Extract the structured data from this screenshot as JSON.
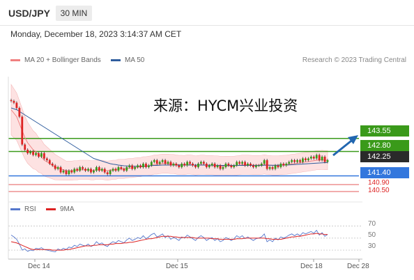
{
  "header": {
    "symbol": "USD/JPY",
    "timeframe": "30 MIN",
    "timestamp": "Monday, December 18, 2023 3:14:37 AM CET"
  },
  "legend_top": [
    {
      "label": "MA 20 + Bollinger Bands",
      "color": "#f08080"
    },
    {
      "label": "MA 50",
      "color": "#2f5d9e"
    }
  ],
  "credit": "Research © 2023 Trading Central",
  "watermark": "来源：HYCM兴业投资",
  "legend_bottom": [
    {
      "label": "RSI",
      "color": "#5577cc"
    },
    {
      "label": "9MA",
      "color": "#dd2222"
    }
  ],
  "price_tags": [
    {
      "value": "143.55",
      "bg": "#3a9a1a",
      "fg": "#ffffff"
    },
    {
      "value": "142.80",
      "bg": "#3a9a1a",
      "fg": "#ffffff"
    },
    {
      "value": "142.25",
      "bg": "#2a2a2a",
      "fg": "#ffffff"
    },
    {
      "value": "141.40",
      "bg": "#3377dd",
      "fg": "#ffffff"
    }
  ],
  "price_labels": [
    {
      "value": "140.90",
      "color": "#dd2222"
    },
    {
      "value": "140.50",
      "color": "#dd2222"
    }
  ],
  "rsi_ticks": [
    "70",
    "50",
    "30"
  ],
  "x_ticks": [
    "Dec 14",
    "Dec 15",
    "Dec 18",
    "Dec 28"
  ],
  "chart_data": [
    {
      "type": "line",
      "title": "",
      "levels": [
        {
          "value": 143.55,
          "kind": "resistance",
          "color": "#3a9a1a"
        },
        {
          "value": 142.8,
          "kind": "resistance",
          "color": "#3a9a1a"
        },
        {
          "value": 142.25,
          "kind": "last price",
          "color": "#2a2a2a"
        },
        {
          "value": 141.4,
          "kind": "support",
          "color": "#3377dd"
        },
        {
          "value": 140.9,
          "kind": "support",
          "color": "#dd2222"
        },
        {
          "value": 140.5,
          "kind": "support",
          "color": "#dd2222"
        }
      ],
      "close": [
        145.7,
        145.6,
        145.3,
        144.8,
        143.2,
        142.9,
        142.7,
        142.8,
        142.6,
        142.7,
        142.5,
        142.7,
        142.4,
        142.3,
        142.1,
        142.0,
        141.8,
        141.9,
        141.6,
        141.7,
        141.5,
        141.7,
        141.6,
        141.8,
        141.7,
        141.9,
        141.8,
        141.7,
        141.8,
        141.6,
        141.7,
        141.9,
        141.7,
        141.8,
        141.6,
        141.5,
        141.7,
        141.8,
        141.7,
        141.9,
        141.8,
        141.7,
        141.9,
        142.0,
        141.8,
        141.9,
        142.0,
        141.9,
        142.1,
        141.9,
        142.0,
        142.2,
        142.3,
        142.1,
        142.2,
        142.3,
        142.1,
        142.2,
        142.0,
        142.1,
        142.0,
        141.9,
        142.1,
        142.0,
        142.2,
        142.1,
        142.0,
        141.9,
        142.1,
        142.2,
        142.1,
        141.9,
        142.0,
        142.1,
        141.9,
        142.0,
        141.8,
        141.9,
        142.1,
        142.0,
        141.9,
        142.0,
        142.2,
        142.1,
        142.2,
        142.0,
        142.1,
        142.0,
        141.9,
        142.0,
        142.0,
        142.1,
        142.3,
        141.8,
        141.9,
        141.8,
        142.0,
        141.9,
        142.1,
        142.0,
        142.1,
        142.2,
        142.3,
        142.2,
        142.3,
        142.2,
        142.4,
        142.3,
        142.4,
        142.5,
        142.4,
        142.6,
        142.3,
        142.5,
        142.2,
        142.3
      ],
      "ma20": [
        145.2,
        145.0,
        144.8,
        144.4,
        144.0,
        143.6,
        143.3,
        143.1,
        142.9,
        142.8,
        142.6,
        142.5,
        142.3,
        142.2,
        142.1,
        142.0,
        141.9,
        141.85,
        141.8,
        141.75,
        141.7,
        141.7,
        141.7,
        141.72,
        141.72,
        141.75,
        141.75,
        141.75,
        141.75,
        141.72,
        141.72,
        141.75,
        141.75,
        141.75,
        141.72,
        141.7,
        141.72,
        141.75,
        141.75,
        141.8,
        141.8,
        141.8,
        141.83,
        141.85,
        141.85,
        141.88,
        141.9,
        141.9,
        141.95,
        141.95,
        141.98,
        142.0,
        142.05,
        142.05,
        142.08,
        142.1,
        142.1,
        142.1,
        142.08,
        142.08,
        142.05,
        142.03,
        142.03,
        142.02,
        142.05,
        142.05,
        142.03,
        142.0,
        142.02,
        142.04,
        142.04,
        142.02,
        142.02,
        142.02,
        142.0,
        142.0,
        141.98,
        141.97,
        141.98,
        141.98,
        141.97,
        141.98,
        142.0,
        142.02,
        142.04,
        142.04,
        142.04,
        142.03,
        142.02,
        142.02,
        142.02,
        142.03,
        142.06,
        142.03,
        142.02,
        142.0,
        142.0,
        142.0,
        142.02,
        142.03,
        142.04,
        142.06,
        142.09,
        142.1,
        142.13,
        142.15,
        142.18,
        142.2,
        142.22,
        142.25,
        142.27,
        142.3,
        142.3,
        142.32,
        142.3,
        142.3
      ],
      "ma50": [
        145.3,
        145.25,
        145.2,
        145.1,
        145.0,
        144.9,
        144.8,
        144.7,
        144.6,
        144.5,
        144.4,
        144.3,
        144.2,
        144.1,
        144.0,
        143.9,
        143.8,
        143.7,
        143.6,
        143.5,
        143.4,
        143.3,
        143.2,
        143.1,
        143.0,
        142.9,
        142.8,
        142.7,
        142.6,
        142.5,
        142.4,
        142.35,
        142.3,
        142.25,
        142.2,
        142.15,
        142.1,
        142.07,
        142.05,
        142.02,
        142.0,
        141.98,
        141.97,
        141.96,
        141.95,
        141.95,
        141.95,
        141.95,
        141.96,
        141.97,
        141.98,
        141.99,
        142.0,
        142.0,
        142.01,
        142.02,
        142.02,
        142.02,
        142.02,
        142.02,
        142.02,
        142.02,
        142.02,
        142.02,
        142.02,
        142.02,
        142.02,
        142.02,
        142.02,
        142.02,
        142.02,
        142.01,
        142.01,
        142.01,
        142.0,
        142.0,
        142.0,
        142.0,
        142.0,
        142.0,
        142.0,
        142.0,
        142.0,
        142.0,
        142.0,
        142.0,
        142.0,
        142.0,
        142.0,
        142.0,
        142.0,
        142.0,
        142.01,
        142.01,
        142.01,
        142.01,
        142.01,
        142.01,
        142.02,
        142.02,
        142.02,
        142.03,
        142.04,
        142.05,
        142.06,
        142.07,
        142.08,
        142.09,
        142.1,
        142.11,
        142.12,
        142.13,
        142.14,
        142.15,
        142.16,
        142.17
      ],
      "rsi": [
        55,
        52,
        48,
        40,
        30,
        32,
        28,
        30,
        29,
        33,
        32,
        34,
        31,
        30,
        29,
        28,
        27,
        32,
        30,
        33,
        31,
        35,
        34,
        38,
        36,
        40,
        38,
        37,
        40,
        36,
        38,
        44,
        40,
        42,
        38,
        36,
        41,
        44,
        42,
        46,
        44,
        42,
        47,
        50,
        46,
        48,
        51,
        49,
        54,
        49,
        52,
        56,
        58,
        52,
        54,
        57,
        51,
        54,
        48,
        51,
        49,
        46,
        52,
        50,
        55,
        52,
        49,
        46,
        51,
        54,
        51,
        46,
        49,
        51,
        46,
        49,
        44,
        46,
        51,
        49,
        46,
        49,
        54,
        51,
        54,
        49,
        52,
        49,
        46,
        49,
        50,
        52,
        57,
        44,
        47,
        44,
        50,
        47,
        52,
        50,
        52,
        55,
        57,
        54,
        57,
        54,
        59,
        57,
        59,
        61,
        58,
        63,
        55,
        59,
        53,
        56
      ],
      "rsi_ma9": [
        44,
        43,
        42,
        40,
        38,
        36,
        34,
        32,
        31,
        31,
        31,
        31,
        31,
        31,
        31,
        30,
        30,
        30,
        30,
        30,
        31,
        31,
        32,
        33,
        34,
        35,
        36,
        37,
        37,
        37,
        38,
        38,
        39,
        39,
        39,
        39,
        40,
        40,
        41,
        41,
        41,
        42,
        42,
        43,
        43,
        44,
        45,
        46,
        47,
        48,
        49,
        49,
        50,
        51,
        52,
        53,
        53,
        53,
        53,
        52,
        52,
        51,
        51,
        51,
        51,
        51,
        51,
        50,
        50,
        50,
        50,
        50,
        50,
        49,
        49,
        49,
        48,
        48,
        48,
        48,
        48,
        48,
        49,
        49,
        49,
        50,
        50,
        50,
        50,
        50,
        50,
        50,
        50,
        49,
        49,
        48,
        48,
        48,
        48,
        49,
        50,
        51,
        52,
        52,
        53,
        53,
        54,
        55,
        56,
        57,
        57,
        58,
        57,
        57,
        56,
        56
      ],
      "rsi_levels": [
        70,
        50,
        30
      ]
    }
  ]
}
